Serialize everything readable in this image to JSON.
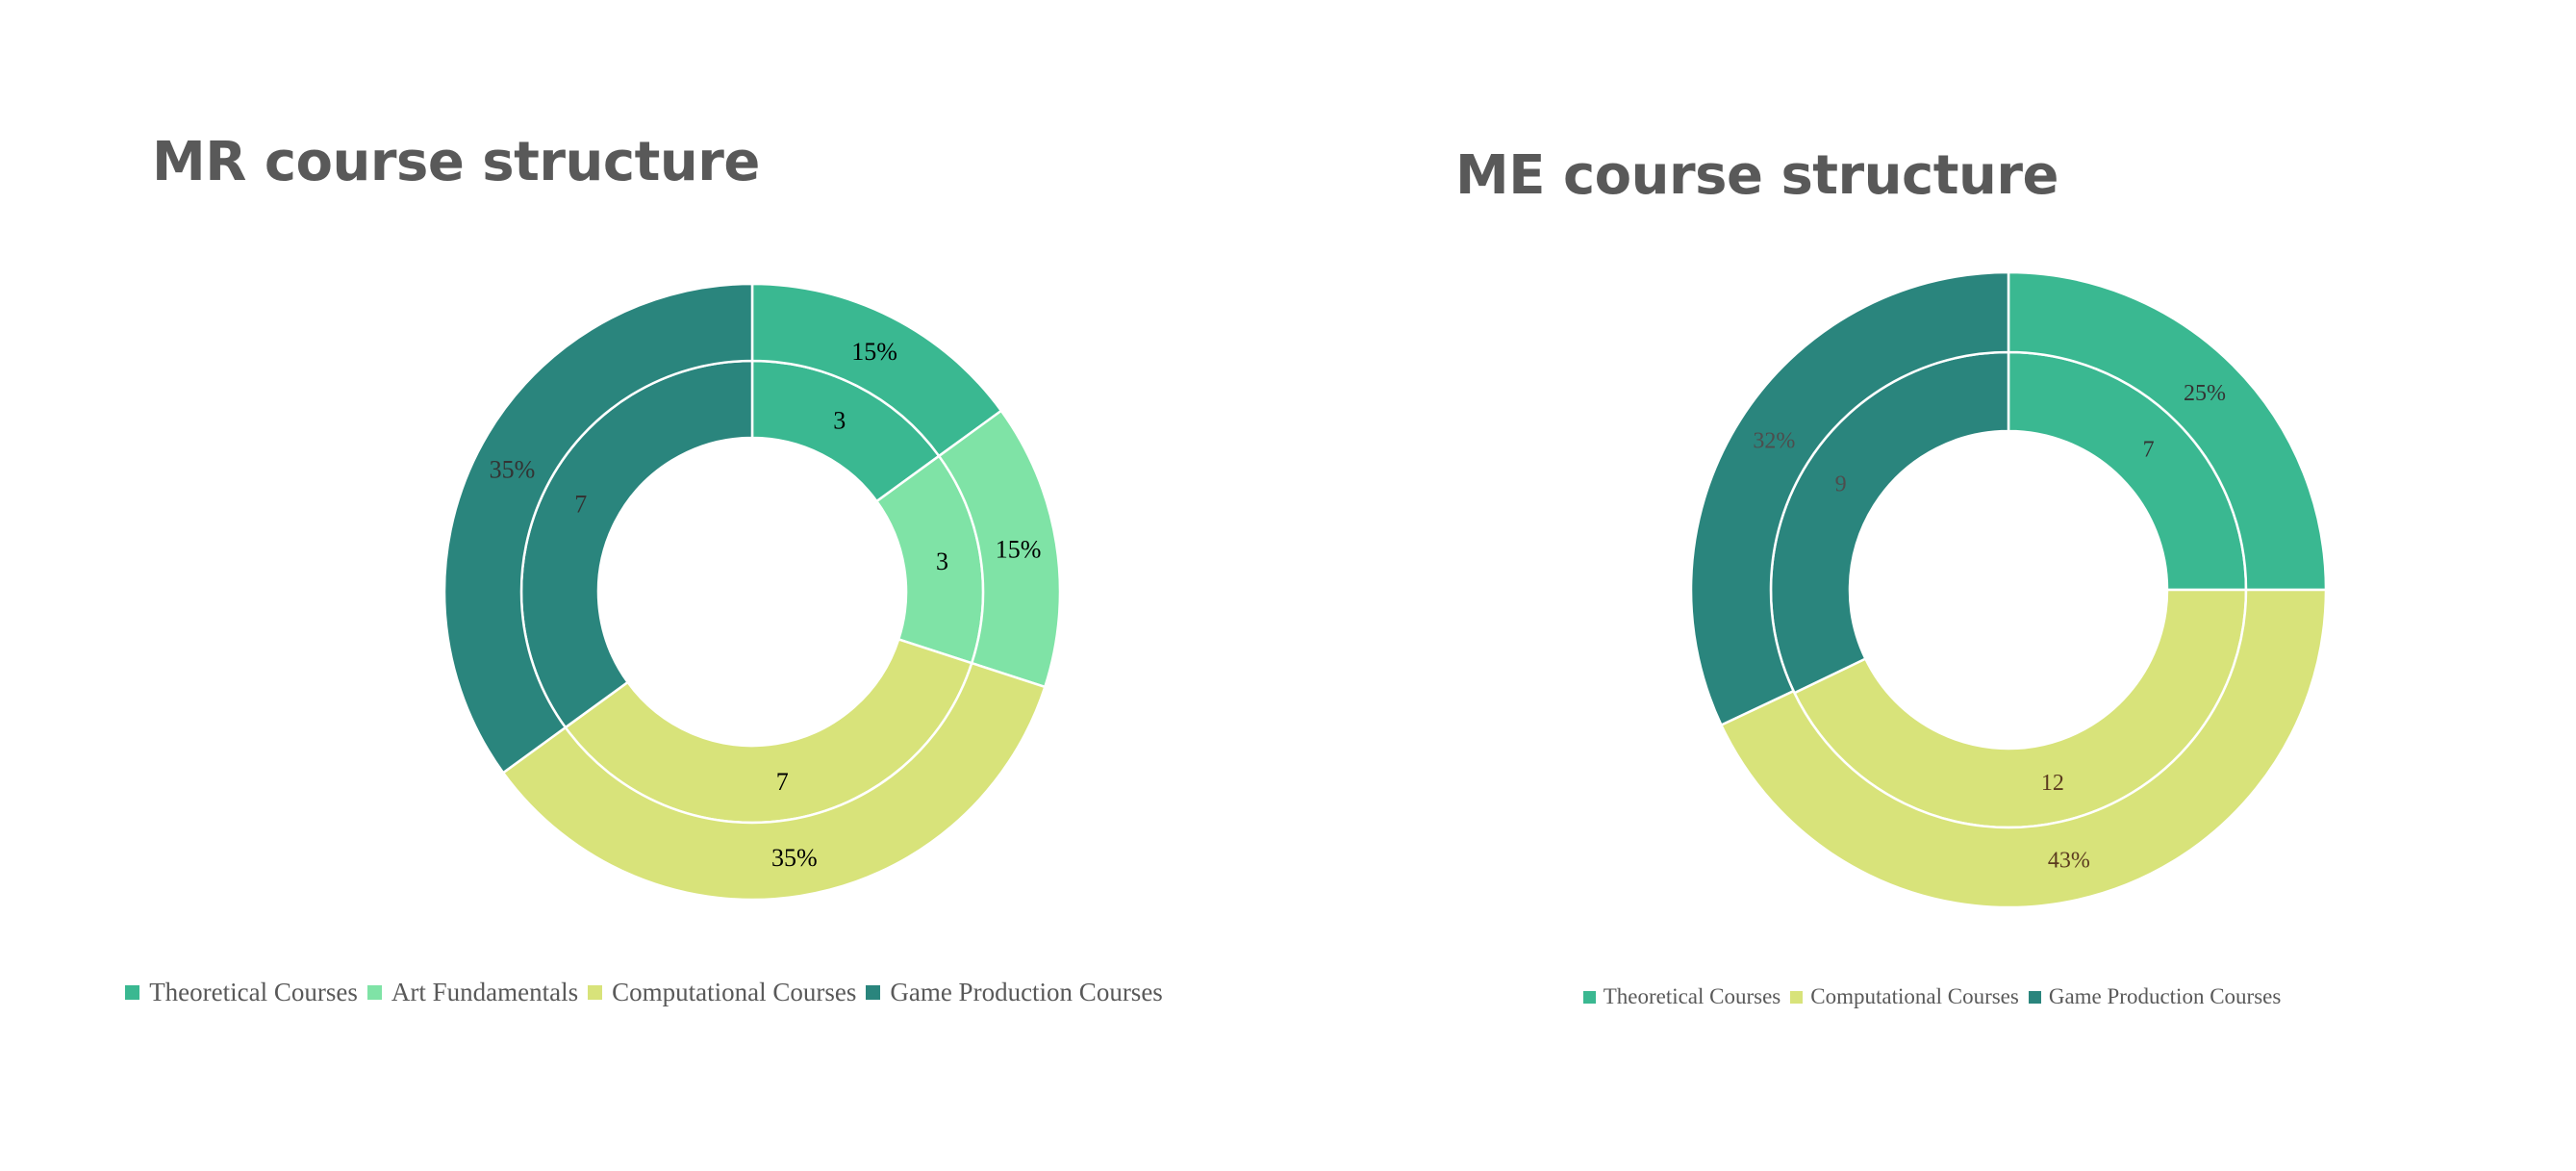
{
  "colors": {
    "theoretical": "#3AB891",
    "art": "#7FE3A6",
    "computational": "#D8E37A",
    "game": "#2A857D"
  },
  "chart_data": [
    {
      "type": "donut",
      "title": "MR course structure",
      "categories": [
        "Theoretical Courses",
        "Art Fundamentals",
        "Computational Courses",
        "Game Production Courses"
      ],
      "series": [
        {
          "ring": "inner",
          "values": [
            3,
            3,
            7,
            7
          ],
          "labels": [
            "3",
            "3",
            "7",
            "7"
          ]
        },
        {
          "ring": "outer",
          "values": [
            15,
            15,
            35,
            35
          ],
          "labels": [
            "15%",
            "15%",
            "35%",
            "35%"
          ]
        }
      ],
      "legend": "bottom"
    },
    {
      "type": "donut",
      "title": "ME course structure",
      "categories": [
        "Theoretical Courses",
        "Computational Courses",
        "Game Production Courses"
      ],
      "series": [
        {
          "ring": "inner",
          "values": [
            7,
            12,
            9
          ],
          "labels": [
            "7",
            "12",
            "9"
          ]
        },
        {
          "ring": "outer",
          "values": [
            25,
            43,
            32
          ],
          "labels": [
            "25%",
            "43%",
            "32%"
          ]
        }
      ],
      "legend": "bottom"
    }
  ]
}
